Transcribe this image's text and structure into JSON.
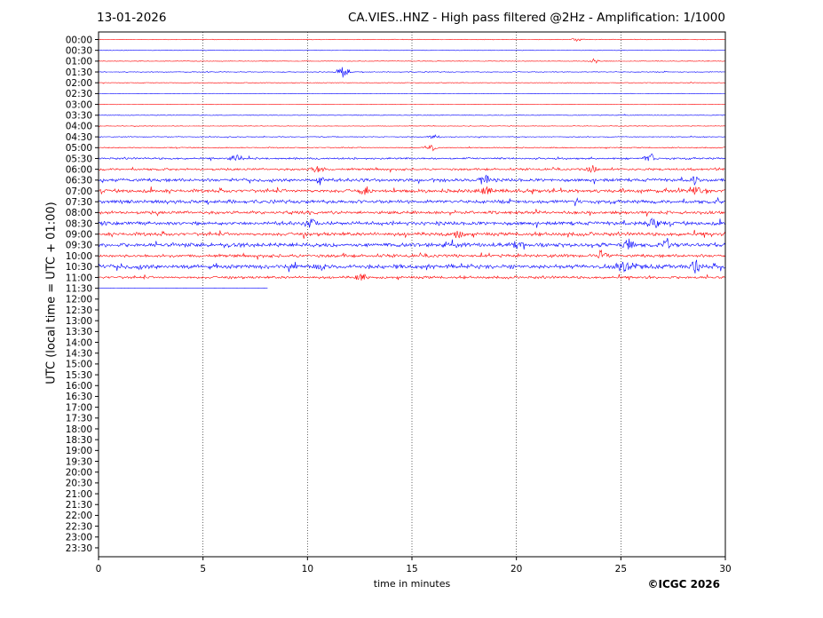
{
  "header": {
    "date": "13-01-2026",
    "title": "CA.VIES..HNZ - High pass filtered @2Hz - Amplification: 1/1000"
  },
  "footer": {
    "copyright": "©ICGC 2026"
  },
  "chart_data": {
    "type": "line",
    "title": "CA.VIES..HNZ - High pass filtered @2Hz - Amplification: 1/1000",
    "xlabel": "time in minutes",
    "ylabel": "UTC (local time = UTC + 01:00)",
    "xlim": [
      0,
      30
    ],
    "x_ticks": [
      0,
      5,
      10,
      15,
      20,
      25,
      30
    ],
    "grid": "vertical dotted lines at every 5 minutes",
    "colors": {
      "even_rows": "#ff0000",
      "odd_rows": "#0000ff"
    },
    "rows": [
      "00:00",
      "00:30",
      "01:00",
      "01:30",
      "02:00",
      "02:30",
      "03:00",
      "03:30",
      "04:00",
      "04:30",
      "05:00",
      "05:30",
      "06:00",
      "06:30",
      "07:00",
      "07:30",
      "08:00",
      "08:30",
      "09:00",
      "09:30",
      "10:00",
      "10:30",
      "11:00",
      "11:30",
      "12:00",
      "12:30",
      "13:00",
      "13:30",
      "14:00",
      "14:30",
      "15:00",
      "15:30",
      "16:00",
      "16:30",
      "17:00",
      "17:30",
      "18:00",
      "18:30",
      "19:00",
      "19:30",
      "20:00",
      "20:30",
      "21:00",
      "21:30",
      "22:00",
      "22:30",
      "23:00",
      "23:30"
    ],
    "row_activity": [
      0.3,
      0.2,
      0.3,
      0.4,
      0.3,
      0.2,
      0.2,
      0.3,
      0.3,
      0.4,
      0.5,
      0.9,
      1.0,
      1.5,
      1.6,
      1.6,
      1.4,
      1.7,
      1.6,
      1.8,
      1.4,
      2.0,
      1.2,
      0.1
    ],
    "last_row_end_minute": 8.1,
    "events": [
      {
        "row": "00:00",
        "minute": 22.9,
        "amp": 2
      },
      {
        "row": "01:00",
        "minute": 23.7,
        "amp": 3
      },
      {
        "row": "01:30",
        "minute": 11.7,
        "amp": 8
      },
      {
        "row": "04:30",
        "minute": 16.1,
        "amp": 3
      },
      {
        "row": "05:00",
        "minute": 15.9,
        "amp": 4
      },
      {
        "row": "05:30",
        "minute": 26.4,
        "amp": 6
      },
      {
        "row": "05:30",
        "minute": 6.6,
        "amp": 5
      },
      {
        "row": "06:00",
        "minute": 10.5,
        "amp": 6
      },
      {
        "row": "06:00",
        "minute": 23.6,
        "amp": 5
      },
      {
        "row": "06:30",
        "minute": 10.6,
        "amp": 6
      },
      {
        "row": "06:30",
        "minute": 18.5,
        "amp": 7
      },
      {
        "row": "06:30",
        "minute": 28.5,
        "amp": 6
      },
      {
        "row": "07:00",
        "minute": 12.8,
        "amp": 7
      },
      {
        "row": "07:00",
        "minute": 18.6,
        "amp": 9
      },
      {
        "row": "07:00",
        "minute": 28.6,
        "amp": 5
      },
      {
        "row": "08:30",
        "minute": 26.6,
        "amp": 8
      },
      {
        "row": "08:30",
        "minute": 10.2,
        "amp": 6
      },
      {
        "row": "09:00",
        "minute": 17.2,
        "amp": 6
      },
      {
        "row": "09:30",
        "minute": 20.0,
        "amp": 6
      },
      {
        "row": "09:30",
        "minute": 25.4,
        "amp": 7
      },
      {
        "row": "09:30",
        "minute": 27.2,
        "amp": 8
      },
      {
        "row": "10:00",
        "minute": 24.1,
        "amp": 6
      },
      {
        "row": "10:30",
        "minute": 10.6,
        "amp": 6
      },
      {
        "row": "10:30",
        "minute": 25.1,
        "amp": 8
      },
      {
        "row": "10:30",
        "minute": 28.6,
        "amp": 9
      },
      {
        "row": "11:00",
        "minute": 12.6,
        "amp": 8
      }
    ]
  }
}
